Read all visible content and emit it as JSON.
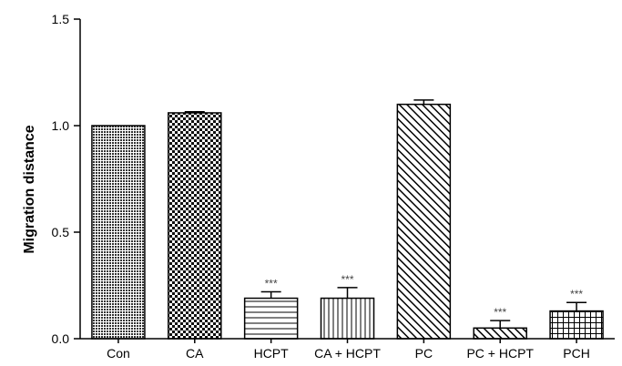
{
  "chart_data": {
    "type": "bar",
    "title": "",
    "xlabel": "",
    "ylabel": "Migration distance",
    "ylim": [
      0,
      1.5
    ],
    "yticks": [
      "0.0",
      "0.5",
      "1.0",
      "1.5"
    ],
    "grid": false,
    "categories": [
      "Con",
      "CA",
      "HCPT",
      "CA + HCPT",
      "PC",
      "PC + HCPT",
      "PCH"
    ],
    "values": [
      1.0,
      1.06,
      0.19,
      0.19,
      1.1,
      0.05,
      0.13
    ],
    "errors": [
      0.0,
      0.005,
      0.03,
      0.05,
      0.02,
      0.035,
      0.04
    ],
    "significance": [
      "",
      "",
      "***",
      "***",
      "",
      "***",
      "***"
    ],
    "patterns": [
      "dense-dots",
      "checker",
      "horizontal-lines",
      "vertical-lines",
      "diagonal-lines",
      "diagonal-lines",
      "grid"
    ]
  }
}
